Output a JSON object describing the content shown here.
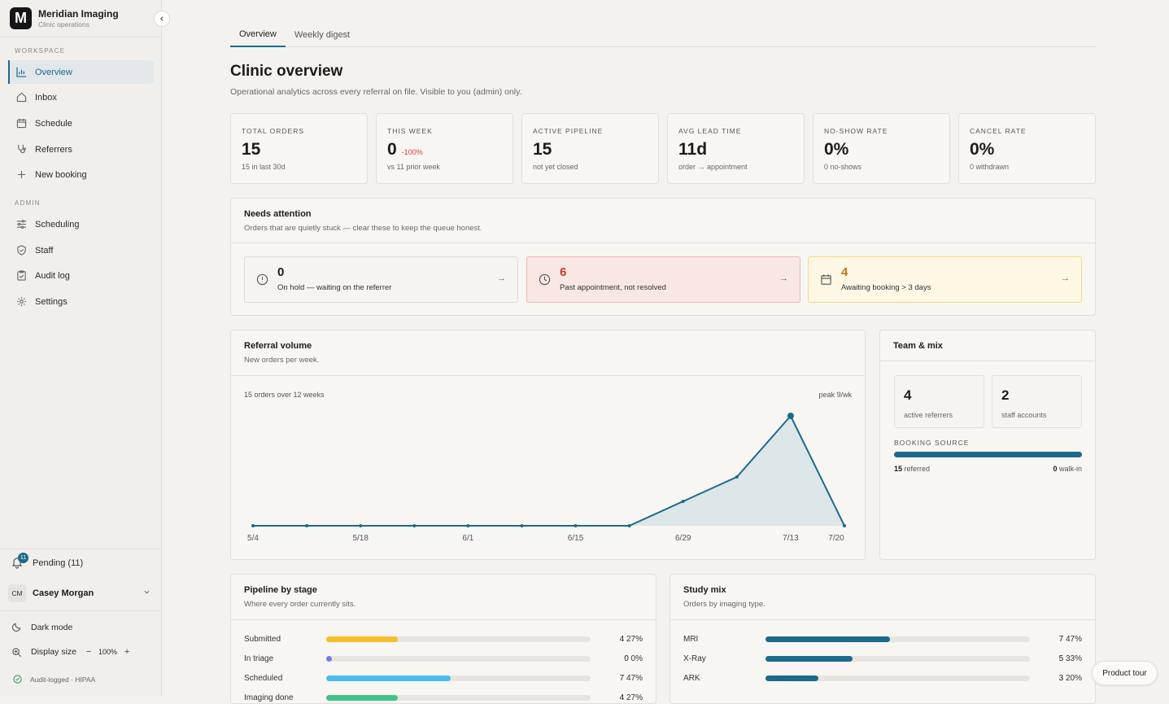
{
  "brand": {
    "logo_letter": "M",
    "name": "Meridian Imaging",
    "subtitle": "Clinic operations"
  },
  "sidebar": {
    "workspace_label": "WORKSPACE",
    "workspace_items": [
      {
        "label": "Overview",
        "icon": "bar-chart-icon",
        "active": true
      },
      {
        "label": "Inbox",
        "icon": "home-icon"
      },
      {
        "label": "Schedule",
        "icon": "calendar-icon"
      },
      {
        "label": "Referrers",
        "icon": "stethoscope-icon"
      },
      {
        "label": "New booking",
        "icon": "plus-icon"
      }
    ],
    "admin_label": "ADMIN",
    "admin_items": [
      {
        "label": "Scheduling",
        "icon": "sliders-icon"
      },
      {
        "label": "Staff",
        "icon": "shield-icon"
      },
      {
        "label": "Audit log",
        "icon": "clipboard-icon"
      },
      {
        "label": "Settings",
        "icon": "gear-icon"
      }
    ],
    "pending": {
      "label": "Pending (11)",
      "badge": "11"
    },
    "user": {
      "initials": "CM",
      "name": "Casey Morgan"
    },
    "dark_mode_label": "Dark mode",
    "display_size": {
      "label": "Display size",
      "minus": "−",
      "value": "100%",
      "plus": "+"
    },
    "compliance": "Audit-logged · HIPAA"
  },
  "tabs": [
    {
      "label": "Overview",
      "active": true
    },
    {
      "label": "Weekly digest"
    }
  ],
  "page": {
    "title": "Clinic overview",
    "subtitle": "Operational analytics across every referral on file. Visible to you (admin) only."
  },
  "kpis": [
    {
      "label": "TOTAL ORDERS",
      "value": "15",
      "delta": "",
      "sub": "15 in last 30d"
    },
    {
      "label": "THIS WEEK",
      "value": "0",
      "delta": "-100%",
      "sub": "vs 11 prior week"
    },
    {
      "label": "ACTIVE PIPELINE",
      "value": "15",
      "delta": "",
      "sub": "not yet closed"
    },
    {
      "label": "AVG LEAD TIME",
      "value": "11d",
      "delta": "",
      "sub": "order → appointment"
    },
    {
      "label": "NO-SHOW RATE",
      "value": "0%",
      "delta": "",
      "sub": "0 no-shows"
    },
    {
      "label": "CANCEL RATE",
      "value": "0%",
      "delta": "",
      "sub": "0 withdrawn"
    }
  ],
  "attention": {
    "title": "Needs attention",
    "subtitle": "Orders that are quietly stuck — clear these to keep the queue honest.",
    "items": [
      {
        "value": "0",
        "label": "On hold — waiting on the referrer",
        "icon": "alert-circle-icon",
        "tone": "neutral"
      },
      {
        "value": "6",
        "label": "Past appointment, not resolved",
        "icon": "clock-icon",
        "tone": "red"
      },
      {
        "value": "4",
        "label": "Awaiting booking > 3 days",
        "icon": "calendar-icon",
        "tone": "yellow"
      }
    ],
    "arrow": "→"
  },
  "referral_volume": {
    "title": "Referral volume",
    "subtitle": "New orders per week.",
    "summary": "15 orders over 12 weeks",
    "peak": "peak 9/wk"
  },
  "chart_data": {
    "type": "area",
    "title": "Referral volume",
    "x": [
      "5/4",
      "5/11",
      "5/18",
      "5/25",
      "6/1",
      "6/8",
      "6/15",
      "6/22",
      "6/29",
      "7/6",
      "7/13",
      "7/20"
    ],
    "tick_labels": [
      "5/4",
      "5/18",
      "6/1",
      "6/15",
      "6/29",
      "7/13",
      "7/20"
    ],
    "series": [
      {
        "values": [
          0,
          0,
          0,
          0,
          0,
          0,
          0,
          0,
          2,
          4,
          9,
          0
        ]
      }
    ],
    "ylim": [
      0,
      9
    ],
    "grid": false,
    "color": "#1c6a8c",
    "fill_color": "#dde6e8"
  },
  "team": {
    "title": "Team & mix",
    "active_referrers": {
      "value": "4",
      "label": "active referrers"
    },
    "staff_accounts": {
      "value": "2",
      "label": "staff accounts"
    },
    "booking_source": {
      "label": "BOOKING SOURCE",
      "referred": 15,
      "referred_label": "referred",
      "walkin": 0,
      "walkin_label": "walk-in",
      "fraction_referred": 1.0
    }
  },
  "pipeline": {
    "title": "Pipeline by stage",
    "subtitle": "Where every order currently sits.",
    "rows": [
      {
        "label": "Submitted",
        "count": "4",
        "pct": "27%",
        "fraction": 0.27,
        "color": "#f5bf2d"
      },
      {
        "label": "In triage",
        "count": "0",
        "pct": "0%",
        "fraction": 0.0,
        "color": "#6f7de3"
      },
      {
        "label": "Scheduled",
        "count": "7",
        "pct": "47%",
        "fraction": 0.47,
        "color": "#4cbcf0"
      },
      {
        "label": "Imaging done",
        "count": "4",
        "pct": "27%",
        "fraction": 0.27,
        "color": "#3fc48a"
      }
    ]
  },
  "study_mix": {
    "title": "Study mix",
    "subtitle": "Orders by imaging type.",
    "rows": [
      {
        "label": "MRI",
        "count": "7",
        "pct": "47%",
        "fraction": 0.47,
        "color": "#1c6a8c"
      },
      {
        "label": "X-Ray",
        "count": "5",
        "pct": "33%",
        "fraction": 0.33,
        "color": "#1c6a8c"
      },
      {
        "label": "ARK",
        "count": "3",
        "pct": "20%",
        "fraction": 0.2,
        "color": "#1c6a8c"
      }
    ]
  },
  "product_tour": "Product tour"
}
